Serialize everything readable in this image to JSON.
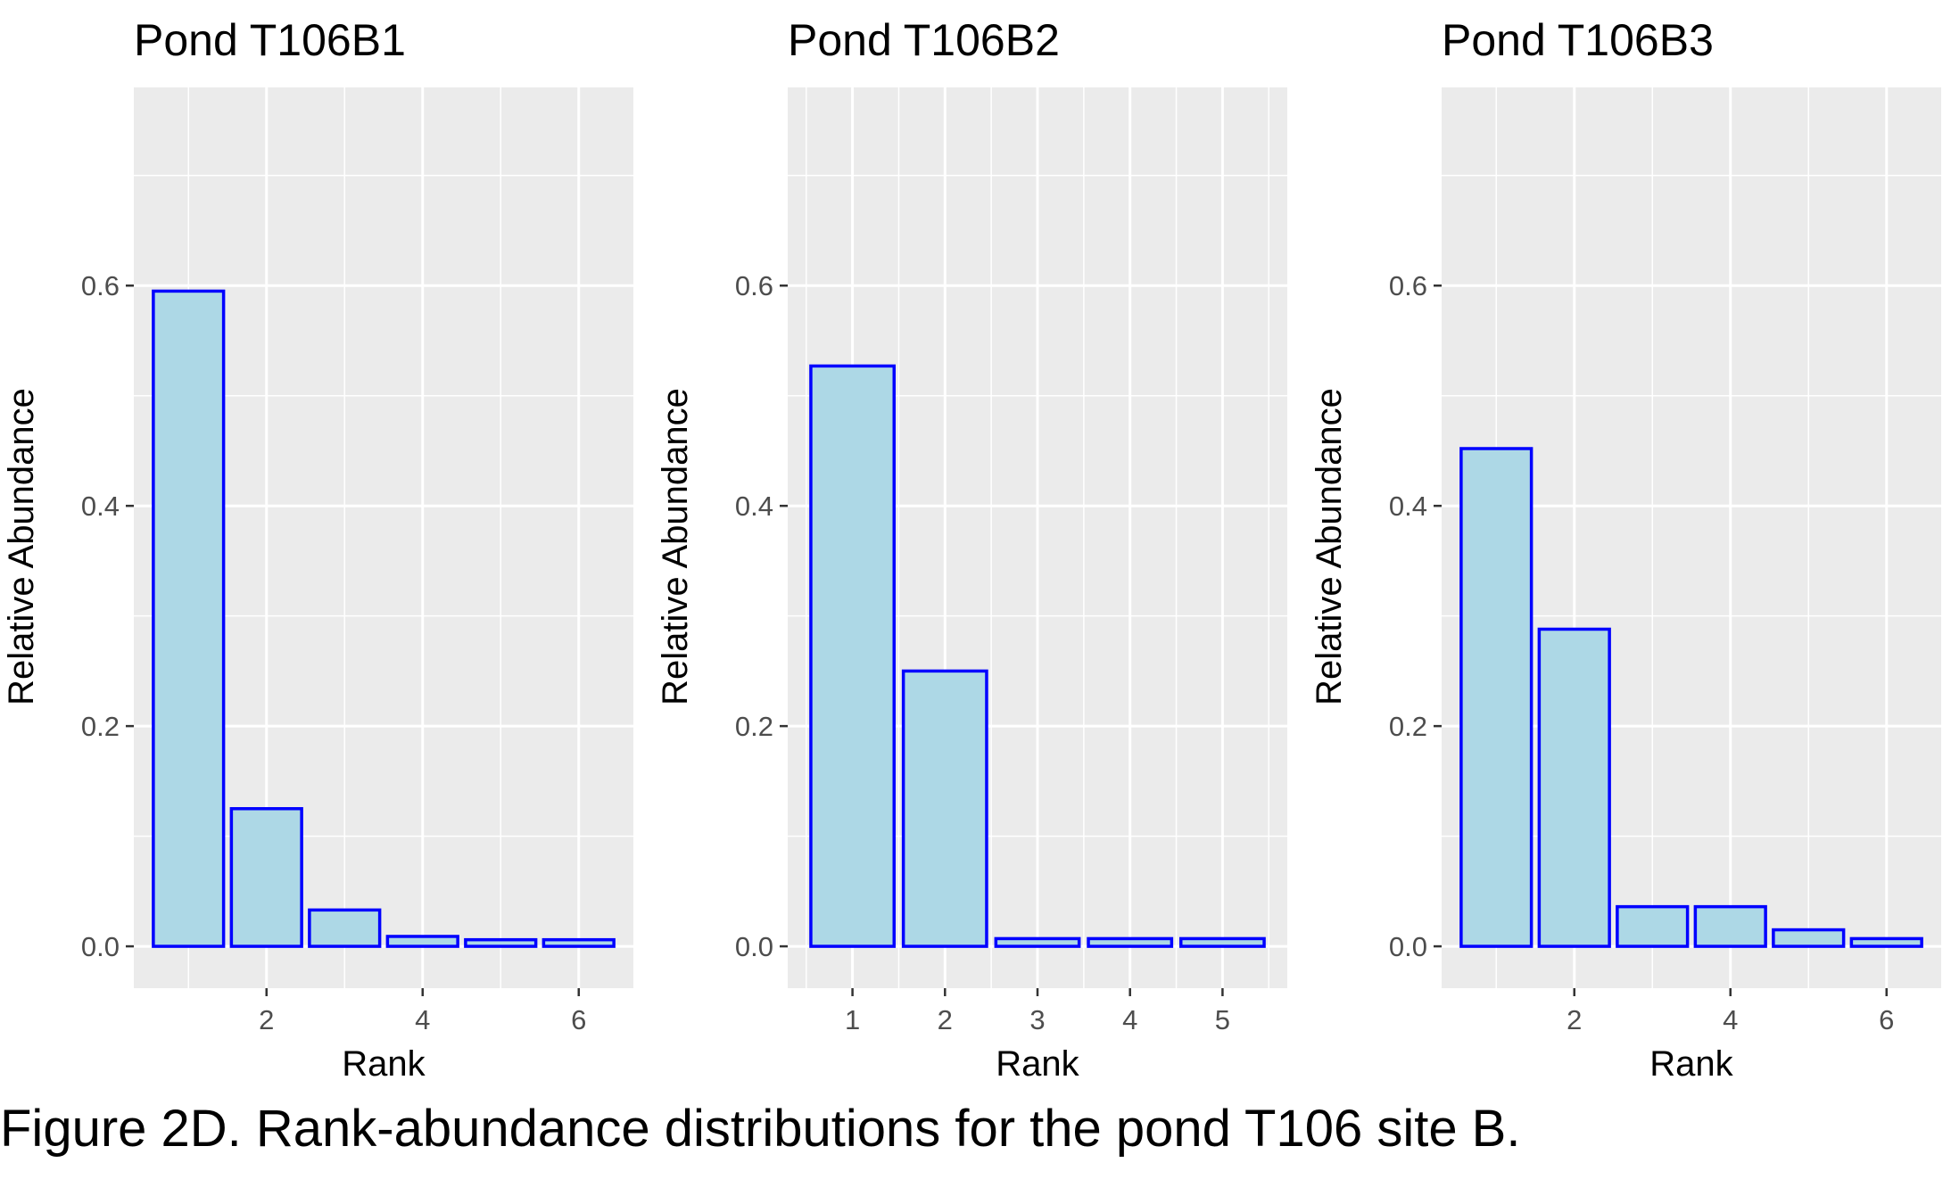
{
  "caption": "Figure 2D. Rank-abundance distributions for the pond T106 site B.",
  "colors": {
    "panel_background": "#EBEBEB",
    "grid": "#FFFFFF",
    "bar_fill": "#ADD8E6",
    "bar_outline": "#0000FF",
    "tick_text": "#4D4D4D",
    "axis_text": "#000000"
  },
  "chart_data": [
    {
      "type": "bar",
      "title": "Pond T106B1",
      "xlabel": "Rank",
      "ylabel": "Relative Abundance",
      "x": [
        1,
        2,
        3,
        4,
        5,
        6
      ],
      "values": [
        0.595,
        0.125,
        0.033,
        0.009,
        0.006,
        0.006
      ],
      "xlim": [
        0.3,
        6.7
      ],
      "ylim": [
        -0.038,
        0.78
      ],
      "xticks": [
        2,
        4,
        6
      ],
      "yticks": [
        0.0,
        0.2,
        0.4,
        0.6
      ],
      "ytick_labels": [
        "0.0",
        "0.2",
        "0.4",
        "0.6"
      ],
      "grid": true
    },
    {
      "type": "bar",
      "title": "Pond T106B2",
      "xlabel": "Rank",
      "ylabel": "Relative Abundance",
      "x": [
        1,
        2,
        3,
        4,
        5
      ],
      "values": [
        0.527,
        0.25,
        0.007,
        0.007,
        0.007
      ],
      "xlim": [
        0.3,
        5.7
      ],
      "ylim": [
        -0.038,
        0.78
      ],
      "xticks": [
        1,
        2,
        3,
        4,
        5
      ],
      "yticks": [
        0.0,
        0.2,
        0.4,
        0.6
      ],
      "ytick_labels": [
        "0.0",
        "0.2",
        "0.4",
        "0.6"
      ],
      "grid": true
    },
    {
      "type": "bar",
      "title": "Pond T106B3",
      "xlabel": "Rank",
      "ylabel": "Relative Abundance",
      "x": [
        1,
        2,
        3,
        4,
        5,
        6
      ],
      "values": [
        0.452,
        0.288,
        0.036,
        0.036,
        0.015,
        0.007
      ],
      "xlim": [
        0.3,
        6.7
      ],
      "ylim": [
        -0.038,
        0.78
      ],
      "xticks": [
        2,
        4,
        6
      ],
      "yticks": [
        0.0,
        0.2,
        0.4,
        0.6
      ],
      "ytick_labels": [
        "0.0",
        "0.2",
        "0.4",
        "0.6"
      ],
      "grid": true
    }
  ]
}
